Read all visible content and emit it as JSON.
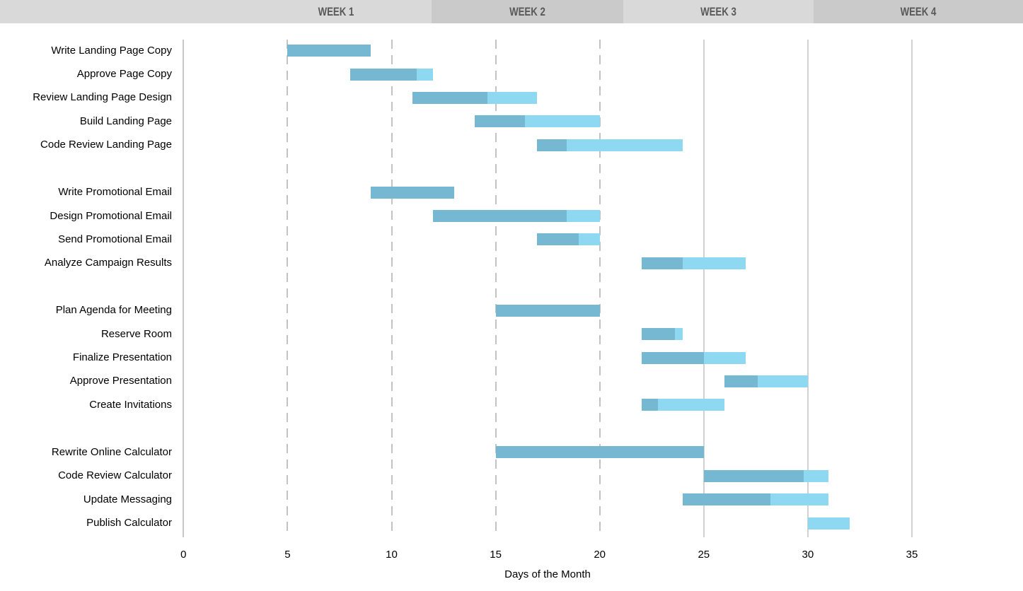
{
  "header": {
    "weeks": [
      {
        "label": "WEEK 1"
      },
      {
        "label": "WEEK 2"
      },
      {
        "label": "WEEK 3"
      },
      {
        "label": "WEEK 4"
      }
    ]
  },
  "axis": {
    "title": "Days of the Month",
    "ticks": [
      0,
      5,
      10,
      15,
      20,
      25,
      30,
      35
    ]
  },
  "colors": {
    "bar_complete": "#76b8d2",
    "bar_remaining": "#8fd8f2",
    "band_light": "#d9d9d9",
    "band_dark": "#cacaca",
    "band_text": "#595959",
    "grid_dashed": "#c3c3c3",
    "grid_solid": "#d2d2d2"
  },
  "chart_data": {
    "type": "bar",
    "subtype": "gantt",
    "title": "",
    "xlabel": "Days of the Month",
    "ylabel": "",
    "xlim": [
      0,
      40
    ],
    "grid": "vertical",
    "legend": "none",
    "gridlines": {
      "dashed_days": [
        5,
        10,
        15,
        20
      ],
      "solid_days": [
        25,
        30,
        35
      ],
      "axis_day": 0
    },
    "series_meaning": "each task bar runs from start_day to end_day; darker segment shows completed portion up to complete_until",
    "groups": [
      {
        "tasks": [
          {
            "name": "Write Landing Page Copy",
            "start": 5,
            "end": 9,
            "complete_until": 9
          },
          {
            "name": "Approve Page Copy",
            "start": 8,
            "end": 12,
            "complete_until": 11.2
          },
          {
            "name": "Review Landing Page Design",
            "start": 11,
            "end": 17,
            "complete_until": 14.6
          },
          {
            "name": "Build Landing Page",
            "start": 14,
            "end": 20,
            "complete_until": 16.4
          },
          {
            "name": "Code Review Landing Page",
            "start": 17,
            "end": 24,
            "complete_until": 18.4
          }
        ]
      },
      {
        "tasks": [
          {
            "name": "Write Promotional Email",
            "start": 9,
            "end": 13,
            "complete_until": 13
          },
          {
            "name": "Design Promotional Email",
            "start": 12,
            "end": 20,
            "complete_until": 18.4
          },
          {
            "name": "Send Promotional Email",
            "start": 17,
            "end": 20,
            "complete_until": 19
          },
          {
            "name": "Analyze Campaign Results",
            "start": 22,
            "end": 27,
            "complete_until": 24
          }
        ]
      },
      {
        "tasks": [
          {
            "name": "Plan Agenda for Meeting",
            "start": 15,
            "end": 20,
            "complete_until": 20
          },
          {
            "name": "Reserve Room",
            "start": 22,
            "end": 24,
            "complete_until": 23.6
          },
          {
            "name": "Finalize Presentation",
            "start": 22,
            "end": 27,
            "complete_until": 25
          },
          {
            "name": "Approve Presentation",
            "start": 26,
            "end": 30,
            "complete_until": 27.6
          },
          {
            "name": "Create Invitations",
            "start": 22,
            "end": 26,
            "complete_until": 22.8
          }
        ]
      },
      {
        "tasks": [
          {
            "name": "Rewrite Online Calculator",
            "start": 15,
            "end": 25,
            "complete_until": 25
          },
          {
            "name": "Code Review Calculator",
            "start": 25,
            "end": 31,
            "complete_until": 29.8
          },
          {
            "name": "Update Messaging",
            "start": 24,
            "end": 31,
            "complete_until": 28.2
          },
          {
            "name": "Publish Calculator",
            "start": 30,
            "end": 32,
            "complete_until": 30
          }
        ]
      }
    ]
  }
}
